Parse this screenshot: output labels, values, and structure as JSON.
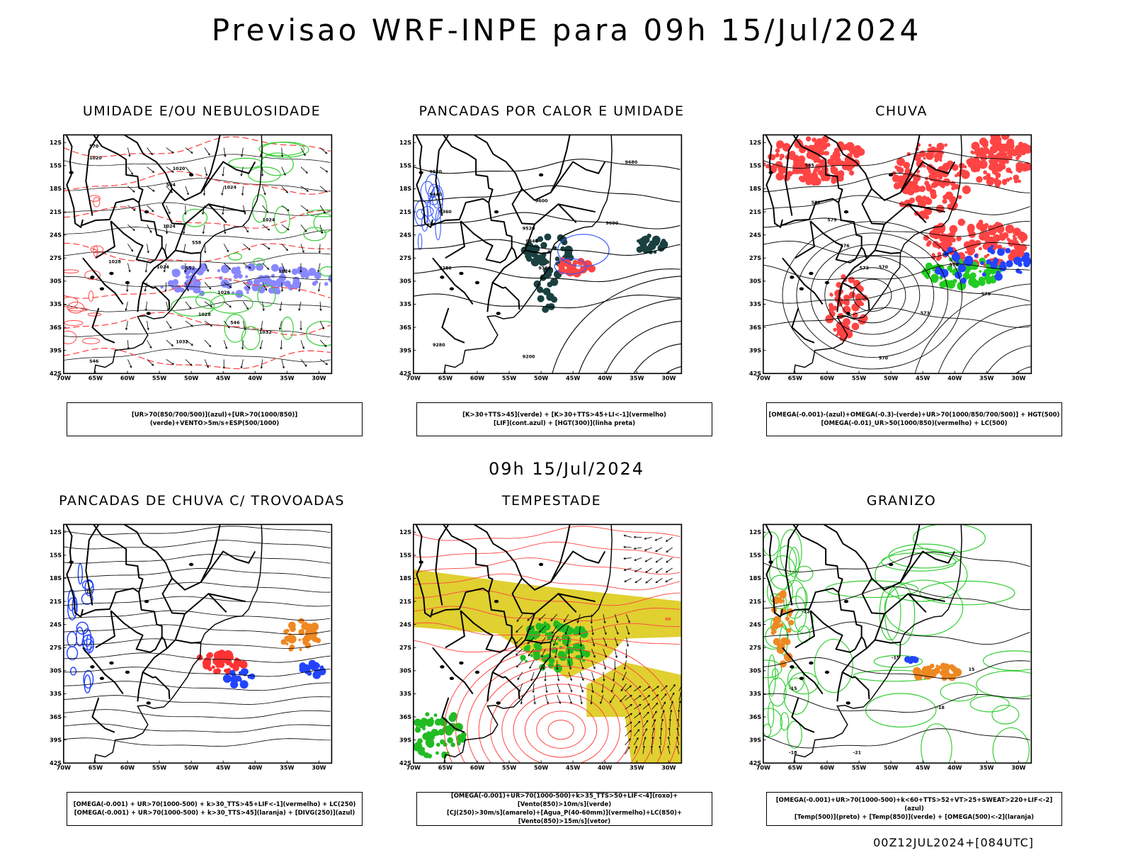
{
  "header": {
    "title": "Previsao WRF-INPE  para 09h 15/Jul/2024",
    "mid_date": "09h 15/Jul/2024",
    "run_label": "00Z12JUL2024+[084UTC]"
  },
  "axes": {
    "lat_ticks": [
      "12S",
      "15S",
      "18S",
      "21S",
      "24S",
      "27S",
      "30S",
      "33S",
      "36S",
      "39S",
      "42S"
    ],
    "lon_ticks": [
      "70W",
      "65W",
      "60W",
      "55W",
      "50W",
      "45W",
      "40W",
      "35W",
      "30W"
    ]
  },
  "panels": [
    {
      "id": "umidade",
      "title": "UMIDADE E/OU NEBULOSIDADE",
      "legend_lines": [
        "[UR>70(850/700/500)](azul)+[UR>70(1000/850)](verde)+VENTO>5m/s+ESP(500/1000)"
      ],
      "contour_labels": [
        "1020",
        "1020",
        "1024",
        "1024",
        "1024",
        "1028",
        "1024",
        "1026",
        "1024",
        "1028",
        "1032",
        "1032",
        "570",
        "564",
        "558",
        "552",
        "546",
        "546"
      ],
      "colors": {
        "humid_low": "#33cc33",
        "humid_high": "#8888ff",
        "thickness": "#ff4444"
      }
    },
    {
      "id": "pancadas-calor",
      "title": "PANCADAS POR CALOR E UMIDADE",
      "legend_lines": [
        "[K>30+TTS>45](verde) + [K>30+TTS>45+LI<-1](vermelho)",
        "[LIF](cont.azul) + [HGT(300)](linha preta)"
      ],
      "contour_labels": [
        "9680",
        "9600",
        "9520",
        "9440",
        "9360",
        "9280",
        "9520",
        "9440",
        "9360",
        "9280",
        "9200",
        "9600"
      ],
      "colors": {
        "verde": "#1a4040",
        "vermelho": "#ff4444",
        "lif": "#3355ff"
      }
    },
    {
      "id": "chuva",
      "title": "CHUVA",
      "legend_lines": [
        "[OMEGA(-0.001)-(azul)+OMEGA(-0.3)-(verde)+UR>70(1000/850/700/500)] + HGT(500)",
        "[OMEGA(-0.01)_UR>50(1000/850)(vermelho) + LC(500)"
      ],
      "contour_labels": [
        "585",
        "582",
        "579",
        "576",
        "573",
        "570",
        "576",
        "573",
        "570",
        "579"
      ],
      "colors": {
        "azul": "#2244ff",
        "verde": "#22cc22",
        "vermelho": "#ff4444"
      }
    },
    {
      "id": "trovoadas",
      "title": "PANCADAS DE CHUVA C/ TROVOADAS",
      "legend_lines": [
        "[OMEGA(-0.001) + UR>70(1000-500) + k>30_TTS>45+LIF<-1](vermelho) + LC(250)",
        "[OMEGA(-0.001) + UR>70(1000-500) + k>30_TTS>45](laranja) + [DIVG(250)](azul)"
      ],
      "contour_labels": [
        "10"
      ],
      "colors": {
        "vermelho": "#ff3333",
        "laranja": "#ee8822",
        "azul": "#2244ff"
      }
    },
    {
      "id": "tempestade",
      "title": "TEMPESTADE",
      "legend_lines": [
        "[OMEGA(-0.001)+UR>70(1000-500)+k>35_TTS>50+LIF<-4](roxo)+[Vento(850)>10m/s](verde)",
        "[CJ(250)>30m/s](amarelo)+[Agua_P(40-60mm)](vermelho)+LC(850)+[Vento(850)>15m/s](vetor)"
      ],
      "contour_labels": [
        "40"
      ],
      "colors": {
        "amarelo": "#e0d030",
        "verde": "#22bb22",
        "vermelho": "#ff4444"
      }
    },
    {
      "id": "granizo",
      "title": "GRANIZO",
      "legend_lines": [
        "[OMEGA(-0.001)+UR>70(1000-500)+k<60+TTS>52+VT>25+SWEAT>220+LIF<-2](azul)",
        "[Temp(500)](preto) + [Temp(850)](verde) + [OMEGA(500)<-2](laranja)"
      ],
      "contour_labels": [
        "-12",
        "-15",
        "-18",
        "-21",
        "-15",
        "-18",
        "15"
      ],
      "colors": {
        "verde": "#33cc33",
        "laranja": "#ee8822",
        "azul": "#2244ff"
      }
    }
  ]
}
